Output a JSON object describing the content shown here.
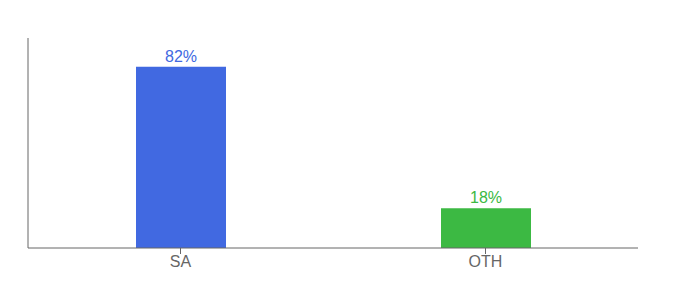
{
  "chart_data": {
    "type": "bar",
    "categories": [
      "SA",
      "OTH"
    ],
    "values": [
      82,
      18
    ],
    "value_labels": [
      "82%",
      "18%"
    ],
    "data_labels": true,
    "colors": [
      "#4169E1",
      "#3CB943"
    ],
    "ylim": [
      0,
      95
    ],
    "tick_labels": "x",
    "grid": false
  }
}
